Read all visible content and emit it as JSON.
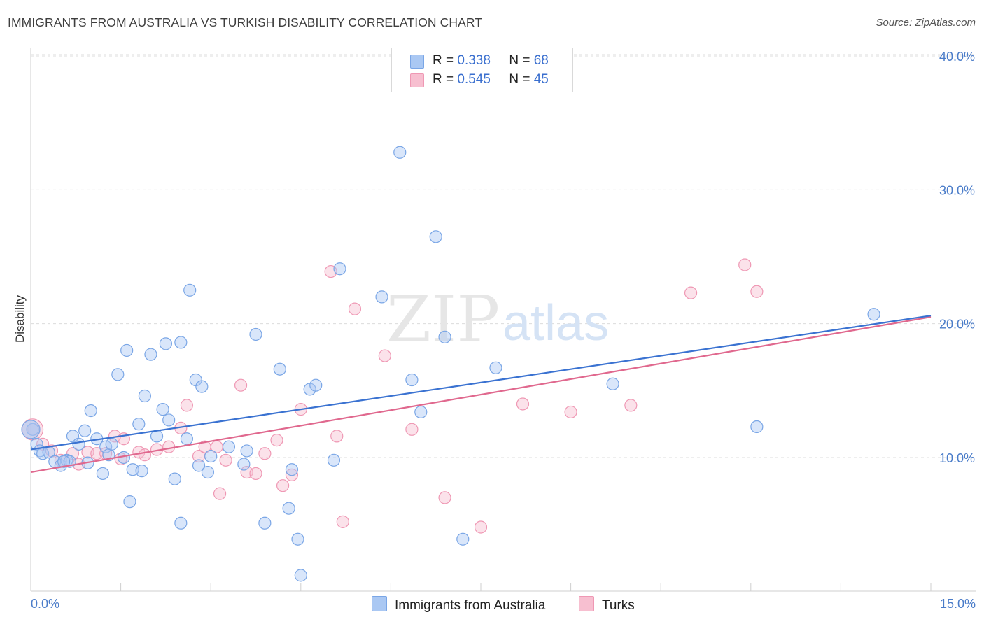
{
  "header": {
    "title": "IMMIGRANTS FROM AUSTRALIA VS TURKISH DISABILITY CORRELATION CHART",
    "source": "Source: ZipAtlas.com"
  },
  "watermark": {
    "zip": "ZIP",
    "atlas": "atlas"
  },
  "legend": {
    "rows": [
      {
        "r_label": "R =",
        "r_value": "0.338",
        "n_label": "N =",
        "n_value": "68"
      },
      {
        "r_label": "R =",
        "r_value": "0.545",
        "n_label": "N =",
        "n_value": "45"
      }
    ]
  },
  "bottom_legend": {
    "series1": "Immigrants from Australia",
    "series2": "Turks"
  },
  "colors": {
    "blue_fill": "#aac8f3",
    "blue_stroke": "#7aa6e6",
    "blue_line": "#3a72d1",
    "pink_fill": "#f7bfd0",
    "pink_stroke": "#ef98b4",
    "pink_line": "#e0688e",
    "tick_text": "#4a7cc9",
    "grid": "#dcdcdc"
  },
  "chart_data": {
    "type": "scatter",
    "title": "IMMIGRANTS FROM AUSTRALIA VS TURKISH DISABILITY CORRELATION CHART",
    "xlabel": "",
    "ylabel": "Disability",
    "xlim": [
      0,
      15
    ],
    "ylim": [
      0,
      41
    ],
    "x_tick_labels": [
      "0.0%",
      "15.0%"
    ],
    "y_ticks": [
      10,
      20,
      30,
      40
    ],
    "y_tick_labels": [
      "10.0%",
      "20.0%",
      "30.0%",
      "40.0%"
    ],
    "grid": true,
    "legend_position": "top-center",
    "series": [
      {
        "name": "Immigrants from Australia",
        "color": "#aac8f3",
        "trend": {
          "x": [
            0,
            15
          ],
          "y": [
            10.6,
            20.6
          ]
        },
        "points": [
          [
            0.03,
            12.1
          ],
          [
            0.1,
            11.0
          ],
          [
            0.15,
            10.5
          ],
          [
            0.2,
            10.3
          ],
          [
            0.3,
            10.4
          ],
          [
            0.4,
            9.7
          ],
          [
            0.5,
            9.4
          ],
          [
            0.6,
            9.8
          ],
          [
            0.65,
            9.7
          ],
          [
            0.7,
            11.6
          ],
          [
            0.8,
            11.0
          ],
          [
            0.9,
            12.0
          ],
          [
            0.95,
            9.6
          ],
          [
            1.0,
            13.5
          ],
          [
            1.1,
            11.4
          ],
          [
            1.2,
            8.8
          ],
          [
            1.25,
            10.8
          ],
          [
            1.3,
            10.2
          ],
          [
            1.35,
            11.0
          ],
          [
            1.45,
            16.2
          ],
          [
            1.55,
            10.0
          ],
          [
            1.6,
            18.0
          ],
          [
            1.65,
            6.7
          ],
          [
            1.7,
            9.1
          ],
          [
            1.8,
            12.5
          ],
          [
            1.85,
            9.0
          ],
          [
            1.9,
            14.6
          ],
          [
            2.0,
            17.7
          ],
          [
            2.1,
            11.6
          ],
          [
            2.2,
            13.6
          ],
          [
            2.25,
            18.5
          ],
          [
            2.3,
            12.8
          ],
          [
            2.4,
            8.4
          ],
          [
            2.5,
            18.6
          ],
          [
            2.5,
            5.1
          ],
          [
            2.6,
            11.4
          ],
          [
            2.65,
            22.5
          ],
          [
            2.75,
            15.8
          ],
          [
            2.8,
            9.4
          ],
          [
            2.85,
            15.3
          ],
          [
            2.95,
            8.9
          ],
          [
            3.0,
            10.1
          ],
          [
            3.3,
            10.8
          ],
          [
            3.55,
            9.5
          ],
          [
            3.6,
            10.5
          ],
          [
            3.75,
            19.2
          ],
          [
            3.9,
            5.1
          ],
          [
            4.15,
            16.6
          ],
          [
            4.3,
            6.2
          ],
          [
            4.35,
            9.1
          ],
          [
            4.45,
            3.9
          ],
          [
            4.5,
            1.2
          ],
          [
            4.65,
            15.1
          ],
          [
            4.75,
            15.4
          ],
          [
            5.05,
            9.8
          ],
          [
            5.15,
            24.1
          ],
          [
            5.85,
            22.0
          ],
          [
            6.15,
            32.8
          ],
          [
            6.35,
            15.8
          ],
          [
            6.5,
            13.4
          ],
          [
            6.75,
            26.5
          ],
          [
            6.9,
            19.0
          ],
          [
            7.2,
            3.9
          ],
          [
            7.75,
            16.7
          ],
          [
            9.7,
            15.5
          ],
          [
            12.1,
            12.3
          ],
          [
            14.05,
            20.7
          ],
          [
            0.55,
            9.7
          ]
        ]
      },
      {
        "name": "Turks",
        "color": "#f7bfd0",
        "trend": {
          "x": [
            0,
            15
          ],
          "y": [
            8.9,
            20.5
          ]
        },
        "points": [
          [
            0.05,
            12.1
          ],
          [
            0.2,
            11.0
          ],
          [
            0.35,
            10.5
          ],
          [
            0.5,
            9.8
          ],
          [
            0.7,
            10.3
          ],
          [
            0.8,
            9.5
          ],
          [
            0.95,
            10.4
          ],
          [
            1.1,
            10.3
          ],
          [
            1.25,
            10.3
          ],
          [
            1.4,
            11.6
          ],
          [
            1.55,
            11.4
          ],
          [
            1.8,
            10.4
          ],
          [
            1.9,
            10.2
          ],
          [
            2.1,
            10.6
          ],
          [
            2.3,
            10.8
          ],
          [
            2.5,
            12.2
          ],
          [
            2.6,
            13.9
          ],
          [
            2.8,
            10.1
          ],
          [
            2.9,
            10.8
          ],
          [
            3.1,
            10.8
          ],
          [
            3.15,
            7.3
          ],
          [
            3.25,
            9.8
          ],
          [
            3.5,
            15.4
          ],
          [
            3.6,
            8.9
          ],
          [
            3.75,
            8.8
          ],
          [
            3.9,
            10.3
          ],
          [
            4.1,
            11.3
          ],
          [
            4.2,
            7.9
          ],
          [
            4.35,
            8.7
          ],
          [
            4.5,
            13.6
          ],
          [
            5.0,
            23.9
          ],
          [
            5.1,
            11.6
          ],
          [
            5.2,
            5.2
          ],
          [
            5.4,
            21.1
          ],
          [
            5.9,
            17.6
          ],
          [
            6.35,
            12.1
          ],
          [
            6.9,
            7.0
          ],
          [
            7.5,
            4.8
          ],
          [
            8.2,
            14.0
          ],
          [
            9.0,
            13.4
          ],
          [
            10.0,
            13.9
          ],
          [
            11.0,
            22.3
          ],
          [
            11.9,
            24.4
          ],
          [
            12.1,
            22.4
          ],
          [
            1.5,
            9.9
          ]
        ]
      }
    ]
  }
}
